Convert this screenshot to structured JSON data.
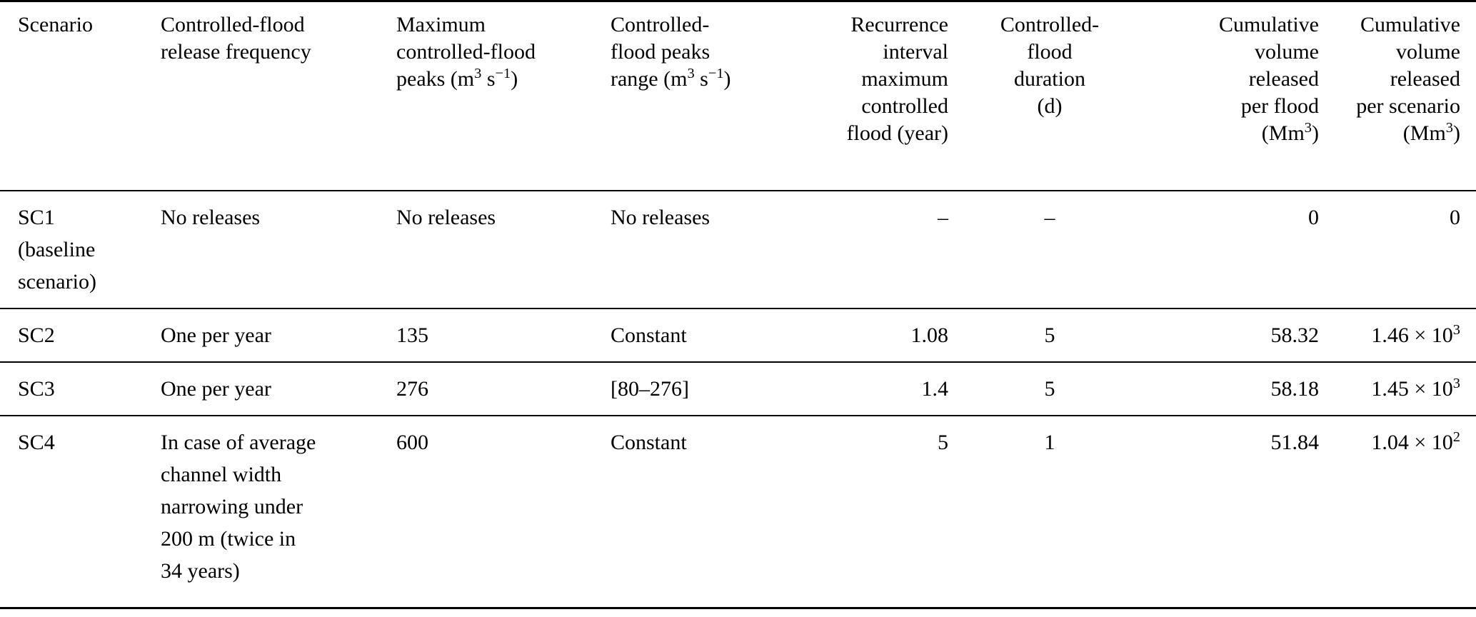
{
  "page": {
    "colors": {
      "background": "#ffffff",
      "text": "#000000",
      "rule": "#000000"
    }
  },
  "table": {
    "description": "Controlled-flood release scenarios table",
    "columns": [
      {
        "id": "scenario",
        "label": "Scenario",
        "align": "left"
      },
      {
        "id": "release_frequency",
        "label": "Controlled-flood\nrelease frequency",
        "align": "left"
      },
      {
        "id": "max_peaks",
        "label": "Maximum\ncontrolled-flood\npeaks (m^{3} s^{−1})",
        "align": "left"
      },
      {
        "id": "peaks_range",
        "label": "Controlled-\nflood peaks\nrange (m^{3} s^{−1})",
        "align": "left"
      },
      {
        "id": "recurrence_interval",
        "label": "Recurrence\ninterval\nmaximum\ncontrolled\nflood (year)",
        "align": "right"
      },
      {
        "id": "duration",
        "label": "Controlled-\nflood\nduration\n(d)",
        "align": "center"
      },
      {
        "id": "volume_per_flood",
        "label": "Cumulative\nvolume\nreleased\nper flood\n(Mm^{3})",
        "align": "right"
      },
      {
        "id": "volume_per_scenario",
        "label": "Cumulative\nvolume\nreleased\nper scenario\n(Mm^{3})",
        "align": "right"
      }
    ],
    "rows": [
      {
        "id": "SC1",
        "cells": [
          "SC1\n(baseline\nscenario)",
          "No releases",
          "No releases",
          "No releases",
          "–",
          "–",
          "0",
          "0"
        ]
      },
      {
        "id": "SC2",
        "cells": [
          "SC2",
          "One per year",
          "135",
          "Constant",
          "1.08",
          "5",
          "58.32",
          "1.46 × 10^{3}"
        ]
      },
      {
        "id": "SC3",
        "cells": [
          "SC3",
          "One per year",
          "276",
          "[80–276]",
          "1.4",
          "5",
          "58.18",
          "1.45 × 10^{3}"
        ]
      },
      {
        "id": "SC4",
        "cells": [
          "SC4",
          "In case of average\nchannel width\nnarrowing under\n200 m (twice in\n34 years)",
          "600",
          "Constant",
          "5",
          "1",
          "51.84",
          "1.04 × 10^{2}"
        ]
      }
    ]
  }
}
